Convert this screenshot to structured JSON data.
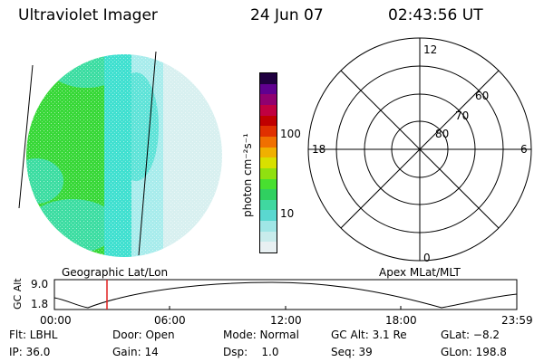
{
  "header": {
    "instrument": "Ultraviolet Imager",
    "date": "24 Jun 07",
    "time": "02:43:56 UT"
  },
  "colorbar": {
    "unit": "photon cm⁻²s⁻¹",
    "ticks": [
      "100",
      "10"
    ],
    "colors": [
      "#e8f0f2",
      "#c8ecec",
      "#a0e6e6",
      "#5ad8d0",
      "#40d8a0",
      "#30d060",
      "#48e030",
      "#90e010",
      "#d8e000",
      "#f0b000",
      "#f07000",
      "#e03000",
      "#c00000",
      "#c00040",
      "#900070",
      "#600090",
      "#200040"
    ]
  },
  "globe": {
    "colors": {
      "cyan": "#40e0d0",
      "green": "#38d838",
      "pale": "#d8f0f0"
    }
  },
  "polar": {
    "labels": {
      "top": "12",
      "bottom": "0",
      "left": "18",
      "right": "6"
    },
    "rings": [
      "80",
      "70",
      "60"
    ]
  },
  "panel_labels": {
    "left": "Geographic Lat/Lon",
    "right": "Apex MLat/MLT"
  },
  "altitude_plot": {
    "ylabel": "GC Alt",
    "yticks": [
      "9.0",
      "1.8"
    ],
    "xticks": [
      "00:00",
      "06:00",
      "12:00",
      "18:00",
      "23:59"
    ],
    "marker_color": "#e02020"
  },
  "footer": {
    "row1": [
      "Flt: LBHL",
      "Door: Open",
      "Mode: Normal",
      "GC Alt: 3.1 Re",
      "GLat: −8.2"
    ],
    "row2": [
      "IP: 36.0",
      "Gain: 14",
      "Dsp:    1.0",
      "Seq: 39",
      "GLon: 198.8"
    ]
  }
}
